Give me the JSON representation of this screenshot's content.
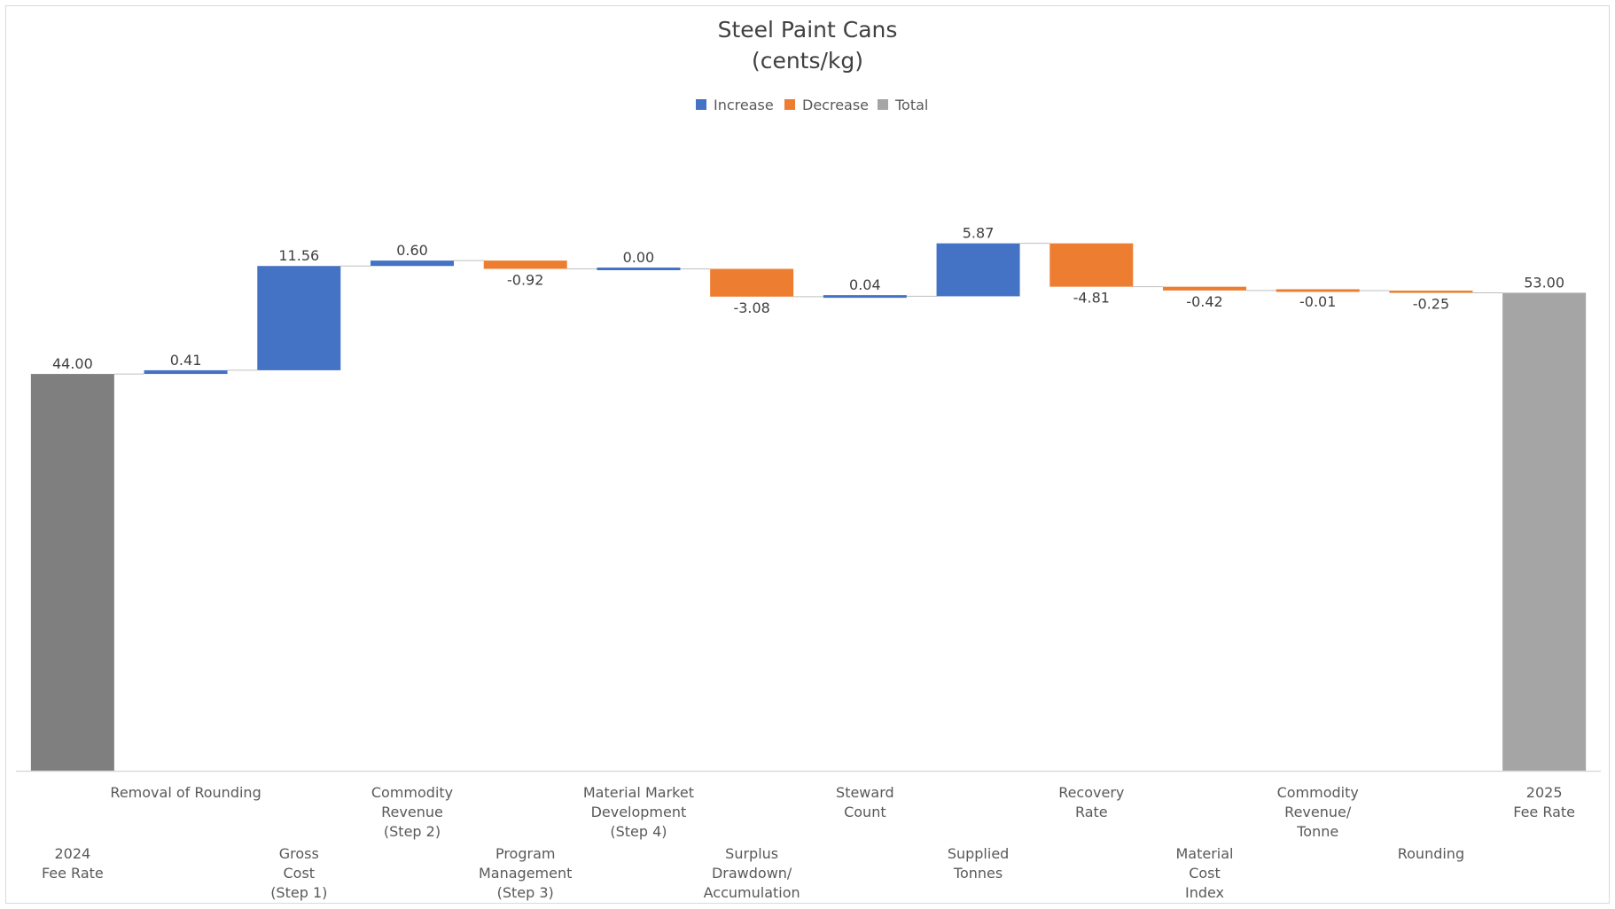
{
  "chart_data": {
    "type": "waterfall",
    "title_lines": [
      "Steel Paint Cans",
      "(cents/kg)"
    ],
    "legend": [
      {
        "name": "Increase",
        "color": "#4472C4"
      },
      {
        "name": "Decrease",
        "color": "#ED7D31"
      },
      {
        "name": "Total",
        "color": "#A5A5A5"
      }
    ],
    "steps": [
      {
        "label_lines": [
          "2024",
          "Fee Rate"
        ],
        "value": 44.0,
        "display": "44.00",
        "kind": "total",
        "color": "#7F7F7F"
      },
      {
        "label_lines": [
          "Removal of Rounding"
        ],
        "value": 0.41,
        "display": "0.41",
        "kind": "increase"
      },
      {
        "label_lines": [
          "Gross",
          "Cost",
          "(Step 1)"
        ],
        "value": 11.56,
        "display": "11.56",
        "kind": "increase"
      },
      {
        "label_lines": [
          "Commodity",
          "Revenue",
          "(Step 2)"
        ],
        "value": 0.6,
        "display": "0.60",
        "kind": "increase"
      },
      {
        "label_lines": [
          "Program",
          "Management",
          "(Step 3)"
        ],
        "value": -0.92,
        "display": "-0.92",
        "kind": "decrease"
      },
      {
        "label_lines": [
          "Material Market",
          "Development",
          "(Step 4)"
        ],
        "value": 0.0,
        "display": "0.00",
        "kind": "increase"
      },
      {
        "label_lines": [
          "Surplus",
          "Drawdown/",
          "Accumulation"
        ],
        "value": -3.08,
        "display": "-3.08",
        "kind": "decrease"
      },
      {
        "label_lines": [
          "Steward",
          "Count"
        ],
        "value": 0.04,
        "display": "0.04",
        "kind": "increase"
      },
      {
        "label_lines": [
          "Supplied",
          "Tonnes"
        ],
        "value": 5.87,
        "display": "5.87",
        "kind": "increase"
      },
      {
        "label_lines": [
          "Recovery",
          "Rate"
        ],
        "value": -4.81,
        "display": "-4.81",
        "kind": "decrease"
      },
      {
        "label_lines": [
          "Material",
          "Cost",
          "Index"
        ],
        "value": -0.42,
        "display": "-0.42",
        "kind": "decrease"
      },
      {
        "label_lines": [
          "Commodity",
          "Revenue/",
          "Tonne"
        ],
        "value": -0.01,
        "display": "-0.01",
        "kind": "decrease"
      },
      {
        "label_lines": [
          "Rounding"
        ],
        "value": -0.25,
        "display": "-0.25",
        "kind": "decrease"
      },
      {
        "label_lines": [
          "2025",
          "Fee Rate"
        ],
        "value": 53.0,
        "display": "53.00",
        "kind": "total"
      }
    ],
    "ylim": [
      0,
      66
    ],
    "gridlines": false,
    "legend_position": "top"
  }
}
